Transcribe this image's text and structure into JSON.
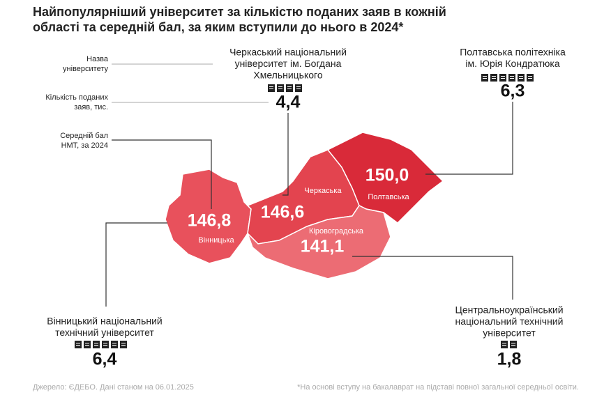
{
  "title": [
    "Найпопулярніший університет за кількістю поданих заяв в кожній",
    "області та середній бал, за яким вступили до нього в 2024*"
  ],
  "legend": {
    "name": [
      "Назва",
      "університету"
    ],
    "applications": [
      "Кількість поданих",
      "заяв, тис."
    ],
    "score": [
      "Середній бал",
      "НМТ, за 2024"
    ]
  },
  "regions": [
    {
      "name": "Вінницька",
      "score": "146,8",
      "university": [
        "Вінницький національний",
        "технічний університет"
      ],
      "applications": "6,4"
    },
    {
      "name": "Черкаська",
      "score": "146,6",
      "university": [
        "Черкаський національний",
        "університет ім. Богдана",
        "Хмельницького"
      ],
      "applications": "4,4"
    },
    {
      "name": "Полтавська",
      "score": "150,0",
      "university": [
        "Полтавська політехніка",
        "ім. Юрія Кондратюка"
      ],
      "applications": "6,3"
    },
    {
      "name": "Кіровоградська",
      "score": "141,1",
      "university": [
        "Центральноукраїнський",
        "національний технічний",
        "університет"
      ],
      "applications": "1,8"
    }
  ],
  "footer": {
    "source": "Джерело: ЄДЕБО. Дані станом на 06.01.2025",
    "note": "*На основі вступу на бакалаврат на підставі повної загальної середньої освіти."
  }
}
